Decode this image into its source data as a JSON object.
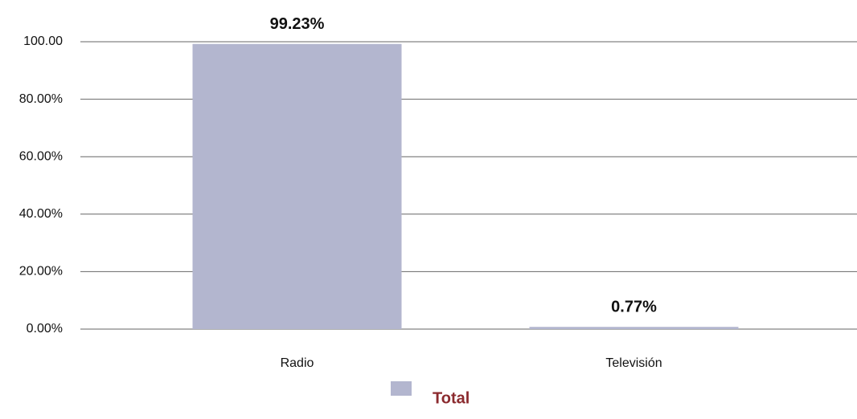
{
  "chart_data": {
    "type": "bar",
    "categories": [
      "Radio",
      "Televisión"
    ],
    "series": [
      {
        "name": "Total",
        "color": "#b3b6cf",
        "values": [
          99.23,
          0.77
        ],
        "value_labels": [
          "99.23%",
          "0.77%"
        ]
      }
    ],
    "ylim": [
      0,
      100
    ],
    "yticks": [
      {
        "value": 0,
        "label": "0.00%"
      },
      {
        "value": 20,
        "label": "20.00%"
      },
      {
        "value": 40,
        "label": "40.00%"
      },
      {
        "value": 60,
        "label": "60.00%"
      },
      {
        "value": 80,
        "label": "80.00%"
      },
      {
        "value": 100,
        "label": "100.00"
      }
    ],
    "grid": true,
    "legend": "bottom"
  }
}
